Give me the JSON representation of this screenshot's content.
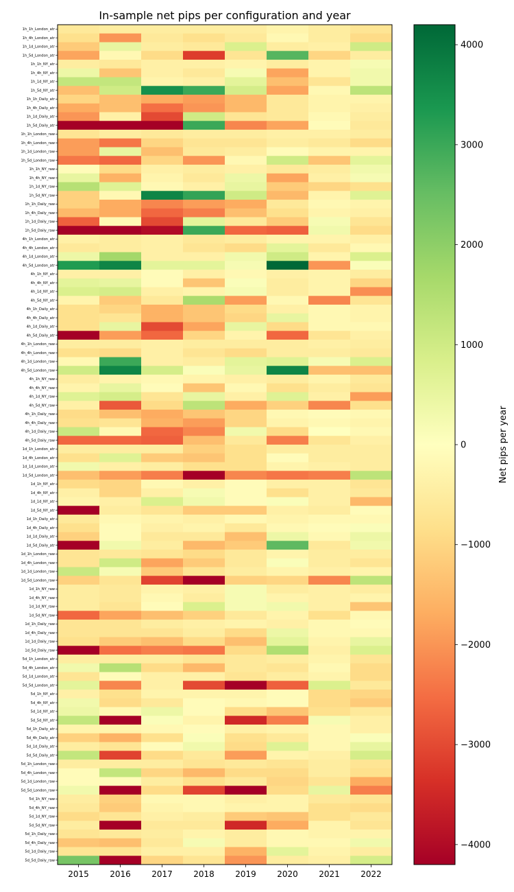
{
  "chart_data": {
    "type": "heatmap",
    "title": "In-sample net pips per configuration and year",
    "xlabel": "",
    "ylabel": "",
    "colorbar_label": "Net pips per year",
    "colormap": "RdYlGn",
    "vmin": -4200,
    "vmax": 4200,
    "colorbar_ticks": [
      4000,
      3000,
      2000,
      1000,
      0,
      -1000,
      -2000,
      -3000,
      -4000
    ],
    "colorbar_tick_labels": [
      "4000",
      "3000",
      "2000",
      "1000",
      "0",
      "−1000",
      "−2000",
      "−3000",
      "−4000"
    ],
    "years": [
      "2015",
      "2016",
      "2017",
      "2018",
      "2019",
      "2020",
      "2021",
      "2022"
    ],
    "rows": [
      "1h_1h_London_atr",
      "1h_4h_London_atr",
      "1h_1d_London_atr",
      "1h_5d_London_atr",
      "1h_1h_NY_atr",
      "1h_4h_NY_atr",
      "1h_1d_NY_atr",
      "1h_5d_NY_atr",
      "1h_1h_Daily_atr",
      "1h_4h_Daily_atr",
      "1h_1d_Daily_atr",
      "1h_5d_Daily_atr",
      "1h_1h_London_raw",
      "1h_4h_London_raw",
      "1h_1d_London_raw",
      "1h_5d_London_raw",
      "1h_1h_NY_raw",
      "1h_4h_NY_raw",
      "1h_1d_NY_raw",
      "1h_5d_NY_raw",
      "1h_1h_Daily_raw",
      "1h_4h_Daily_raw",
      "1h_1d_Daily_raw",
      "1h_5d_Daily_raw",
      "4h_1h_London_atr",
      "4h_4h_London_atr",
      "4h_1d_London_atr",
      "4h_5d_London_atr",
      "4h_1h_NY_atr",
      "4h_4h_NY_atr",
      "4h_1d_NY_atr",
      "4h_5d_NY_atr",
      "4h_1h_Daily_atr",
      "4h_4h_Daily_atr",
      "4h_1d_Daily_atr",
      "4h_5d_Daily_atr",
      "4h_1h_London_raw",
      "4h_4h_London_raw",
      "4h_1d_London_raw",
      "4h_5d_London_raw",
      "4h_1h_NY_raw",
      "4h_4h_NY_raw",
      "4h_1d_NY_raw",
      "4h_5d_NY_raw",
      "4h_1h_Daily_raw",
      "4h_4h_Daily_raw",
      "4h_1d_Daily_raw",
      "4h_5d_Daily_raw",
      "1d_1h_London_atr",
      "1d_4h_London_atr",
      "1d_1d_London_atr",
      "1d_5d_London_atr",
      "1d_1h_NY_atr",
      "1d_4h_NY_atr",
      "1d_1d_NY_atr",
      "1d_5d_NY_atr",
      "1d_1h_Daily_atr",
      "1d_4h_Daily_atr",
      "1d_1d_Daily_atr",
      "1d_5d_Daily_atr",
      "1d_1h_London_raw",
      "1d_4h_London_raw",
      "1d_1d_London_raw",
      "1d_5d_London_raw",
      "1d_1h_NY_raw",
      "1d_4h_NY_raw",
      "1d_1d_NY_raw",
      "1d_5d_NY_raw",
      "1d_1h_Daily_raw",
      "1d_4h_Daily_raw",
      "1d_1d_Daily_raw",
      "1d_5d_Daily_raw",
      "5d_1h_London_atr",
      "5d_4h_London_atr",
      "5d_1d_London_atr",
      "5d_5d_London_atr",
      "5d_1h_NY_atr",
      "5d_4h_NY_atr",
      "5d_1d_NY_atr",
      "5d_5d_NY_atr",
      "5d_1h_Daily_atr",
      "5d_4h_Daily_atr",
      "5d_1d_Daily_atr",
      "5d_5d_Daily_atr",
      "5d_1h_London_raw",
      "5d_4h_London_raw",
      "5d_1d_London_raw",
      "5d_5d_London_raw",
      "5d_1h_NY_raw",
      "5d_4h_NY_raw",
      "5d_1d_NY_raw",
      "5d_5d_NY_raw",
      "5d_1h_Daily_raw",
      "5d_4h_Daily_raw",
      "5d_1d_Daily_raw",
      "5d_5d_Daily_raw"
    ],
    "values": [
      [
        -600,
        -500,
        -500,
        -500,
        -500,
        -300,
        -500,
        -700
      ],
      [
        -800,
        -2000,
        -600,
        -800,
        -600,
        -200,
        -500,
        -900
      ],
      [
        -1200,
        500,
        -500,
        -600,
        800,
        -500,
        -400,
        1000
      ],
      [
        -1800,
        -200,
        -900,
        -3200,
        -700,
        2700,
        -1000,
        -500
      ],
      [
        -500,
        -600,
        -400,
        -400,
        -300,
        -500,
        -300,
        200
      ],
      [
        400,
        -1300,
        -400,
        -600,
        200,
        -1800,
        -300,
        300
      ],
      [
        1200,
        1200,
        -300,
        -400,
        600,
        -1400,
        -700,
        300
      ],
      [
        -1400,
        1000,
        3500,
        3000,
        900,
        -1800,
        -200,
        1300
      ],
      [
        -1000,
        -1400,
        -1700,
        -1900,
        -1500,
        -600,
        -300,
        -300
      ],
      [
        -1700,
        -1400,
        -2500,
        -2000,
        -1500,
        -600,
        -300,
        -400
      ],
      [
        -2000,
        -400,
        -3000,
        1000,
        -700,
        -600,
        -200,
        -500
      ],
      [
        -4200,
        -4200,
        -4200,
        3000,
        -2200,
        -1800,
        -100,
        -600
      ],
      [
        -700,
        -500,
        -600,
        -500,
        -500,
        -400,
        -400,
        -500
      ],
      [
        -1900,
        -2400,
        -1000,
        -700,
        -700,
        -500,
        -600,
        -900
      ],
      [
        -1900,
        500,
        -1400,
        -600,
        -500,
        -100,
        -300,
        -300
      ],
      [
        -2400,
        -2600,
        -1000,
        -2000,
        -200,
        1000,
        -1300,
        600
      ],
      [
        -100,
        -900,
        -400,
        -500,
        -400,
        -600,
        -500,
        300
      ],
      [
        500,
        -1600,
        -300,
        -600,
        400,
        -1800,
        -400,
        200
      ],
      [
        1400,
        700,
        -200,
        -400,
        500,
        -1200,
        -1000,
        -800
      ],
      [
        -1100,
        -200,
        3700,
        3100,
        1000,
        -1500,
        -300,
        700
      ],
      [
        -1100,
        -1700,
        -2200,
        -1900,
        -1700,
        -600,
        -200,
        -300
      ],
      [
        -1500,
        -1700,
        -2600,
        -2300,
        -1400,
        -800,
        -300,
        -400
      ],
      [
        -2700,
        -200,
        -3000,
        600,
        -600,
        -1200,
        200,
        -700
      ],
      [
        -4200,
        -4200,
        -4000,
        3000,
        -2600,
        -2700,
        300,
        -900
      ],
      [
        -400,
        -500,
        -400,
        -600,
        -500,
        -300,
        -300,
        -400
      ],
      [
        -600,
        -500,
        -400,
        -700,
        -900,
        600,
        -600,
        -200
      ],
      [
        400,
        1700,
        -400,
        -400,
        300,
        1000,
        -300,
        800
      ],
      [
        3300,
        3700,
        600,
        600,
        200,
        4200,
        -2000,
        100
      ],
      [
        -400,
        -400,
        -100,
        -400,
        -200,
        -400,
        -300,
        -500
      ],
      [
        600,
        500,
        -100,
        -1300,
        100,
        -500,
        -300,
        -1000
      ],
      [
        800,
        900,
        -400,
        -300,
        200,
        -500,
        -300,
        -2100
      ],
      [
        -300,
        -1200,
        -600,
        1600,
        -1900,
        -200,
        -2200,
        -700
      ],
      [
        -800,
        -1000,
        -1600,
        -1300,
        -900,
        -400,
        -200,
        -300
      ],
      [
        -800,
        -700,
        -1600,
        -1300,
        -1000,
        500,
        -200,
        -300
      ],
      [
        -800,
        500,
        -3000,
        -1800,
        500,
        -900,
        -200,
        -200
      ],
      [
        -4200,
        -1900,
        -2600,
        -1000,
        -300,
        -2600,
        -700,
        -400
      ],
      [
        -500,
        -500,
        -400,
        -500,
        -500,
        -500,
        -400,
        -500
      ],
      [
        -800,
        -900,
        -400,
        -700,
        -900,
        -500,
        -500,
        -600
      ],
      [
        -200,
        3000,
        -400,
        -500,
        600,
        700,
        200,
        800
      ],
      [
        1000,
        3700,
        900,
        100,
        500,
        3700,
        -1400,
        -1400
      ],
      [
        -500,
        -300,
        -200,
        -300,
        -400,
        -500,
        -300,
        -600
      ],
      [
        -300,
        500,
        -100,
        -1300,
        -200,
        -800,
        -500,
        -700
      ],
      [
        700,
        900,
        -700,
        500,
        -400,
        700,
        -400,
        -1900
      ],
      [
        -400,
        -2800,
        -900,
        1300,
        -1700,
        -1100,
        -2200,
        -800
      ],
      [
        -900,
        -1400,
        -1700,
        -1300,
        -1000,
        -200,
        -100,
        -200
      ],
      [
        -800,
        -700,
        -1600,
        -1900,
        -1000,
        -300,
        -200,
        -300
      ],
      [
        1100,
        -200,
        -2600,
        -2200,
        300,
        -900,
        0,
        -200
      ],
      [
        -2600,
        -2600,
        -2700,
        -1400,
        -600,
        -2300,
        -700,
        -400
      ],
      [
        -500,
        -500,
        -500,
        -1100,
        -800,
        -500,
        -500,
        -500
      ],
      [
        -800,
        700,
        -1200,
        -1300,
        -800,
        -100,
        -500,
        -500
      ],
      [
        300,
        -400,
        -500,
        -800,
        -800,
        -300,
        -400,
        -500
      ],
      [
        -1400,
        -1900,
        -2300,
        -4200,
        -2200,
        -2400,
        -2300,
        1300
      ],
      [
        -900,
        -1000,
        -200,
        -400,
        -100,
        -400,
        -400,
        -700
      ],
      [
        -400,
        -1000,
        -400,
        200,
        -100,
        -800,
        -400,
        -600
      ],
      [
        -300,
        -400,
        800,
        300,
        -100,
        100,
        -400,
        -1500
      ],
      [
        -4200,
        -500,
        -700,
        -1200,
        -1200,
        -400,
        -500,
        -100
      ],
      [
        -600,
        -200,
        -300,
        -400,
        -200,
        -300,
        -200,
        -200
      ],
      [
        -800,
        -100,
        -400,
        -300,
        -600,
        -200,
        -100,
        100
      ],
      [
        -1100,
        -100,
        -600,
        -600,
        -1400,
        400,
        -200,
        400
      ],
      [
        -4200,
        300,
        -500,
        -1500,
        -1200,
        2600,
        -600,
        300
      ],
      [
        -700,
        -600,
        -700,
        -900,
        -600,
        -300,
        -500,
        -500
      ],
      [
        -700,
        1000,
        -1800,
        -1200,
        -600,
        100,
        -500,
        -700
      ],
      [
        1100,
        200,
        -1200,
        -700,
        -500,
        -300,
        -400,
        -300
      ],
      [
        -1100,
        -700,
        -3100,
        -4200,
        -1100,
        -1000,
        -2200,
        1300
      ],
      [
        -500,
        -600,
        -300,
        -400,
        200,
        -500,
        -400,
        -500
      ],
      [
        -500,
        -600,
        -200,
        -500,
        200,
        -300,
        -400,
        -300
      ],
      [
        -500,
        -700,
        -100,
        800,
        200,
        300,
        -400,
        -1300
      ],
      [
        -2600,
        -1800,
        -1400,
        -1100,
        -600,
        -300,
        -800,
        -200
      ],
      [
        -700,
        -700,
        -500,
        -400,
        -300,
        -400,
        -200,
        -100
      ],
      [
        -700,
        -700,
        -700,
        -500,
        -900,
        400,
        -200,
        -200
      ],
      [
        -800,
        -1200,
        -1400,
        -900,
        -1400,
        600,
        -300,
        500
      ],
      [
        -4200,
        -2500,
        -2300,
        -2400,
        -900,
        1500,
        -400,
        800
      ],
      [
        -500,
        -500,
        -500,
        -700,
        -600,
        -500,
        -300,
        -700
      ],
      [
        300,
        1400,
        -900,
        -1500,
        -600,
        -700,
        -200,
        -900
      ],
      [
        -700,
        -100,
        -400,
        -400,
        -700,
        -500,
        -300,
        -900
      ],
      [
        600,
        -2200,
        -400,
        -3000,
        -4200,
        -2700,
        800,
        -600
      ],
      [
        -400,
        -800,
        -300,
        -300,
        -300,
        -100,
        -900,
        -1000
      ],
      [
        300,
        -900,
        -600,
        -100,
        -200,
        -100,
        -900,
        -1200
      ],
      [
        400,
        -200,
        400,
        -100,
        -900,
        -1300,
        -800,
        -600
      ],
      [
        1200,
        -4200,
        100,
        -300,
        -3500,
        -2300,
        200,
        -400
      ],
      [
        -300,
        -300,
        -200,
        -100,
        -400,
        -300,
        -200,
        -400
      ],
      [
        -1100,
        -1600,
        -800,
        100,
        -800,
        -600,
        -200,
        100
      ],
      [
        -500,
        -700,
        -100,
        300,
        -900,
        700,
        -200,
        500
      ],
      [
        1200,
        -3100,
        -900,
        -600,
        -1900,
        -300,
        -400,
        900
      ],
      [
        -500,
        -500,
        -500,
        -700,
        -600,
        -700,
        -500,
        -700
      ],
      [
        -100,
        1200,
        -1000,
        -1500,
        -900,
        -900,
        -500,
        -800
      ],
      [
        -100,
        -100,
        -500,
        -800,
        -600,
        -1000,
        -700,
        -1700
      ],
      [
        300,
        -4200,
        -900,
        -3100,
        -4200,
        -900,
        500,
        -2300
      ],
      [
        -500,
        -1100,
        -200,
        -200,
        -400,
        -300,
        -600,
        -700
      ],
      [
        -600,
        -1200,
        -300,
        -200,
        -300,
        -300,
        -800,
        -900
      ],
      [
        -900,
        -700,
        -400,
        -500,
        -1200,
        -1300,
        -800,
        -600
      ],
      [
        -500,
        -4200,
        -600,
        -600,
        -3500,
        -1700,
        -300,
        -700
      ],
      [
        -700,
        -600,
        -500,
        -300,
        -500,
        -200,
        -300,
        -300
      ],
      [
        -1300,
        -1400,
        -600,
        200,
        -500,
        -200,
        -200,
        300
      ],
      [
        -700,
        -700,
        -400,
        -400,
        -1600,
        600,
        -300,
        -500
      ],
      [
        2300,
        -4200,
        -1000,
        -700,
        -2000,
        -500,
        -400,
        900
      ]
    ]
  }
}
